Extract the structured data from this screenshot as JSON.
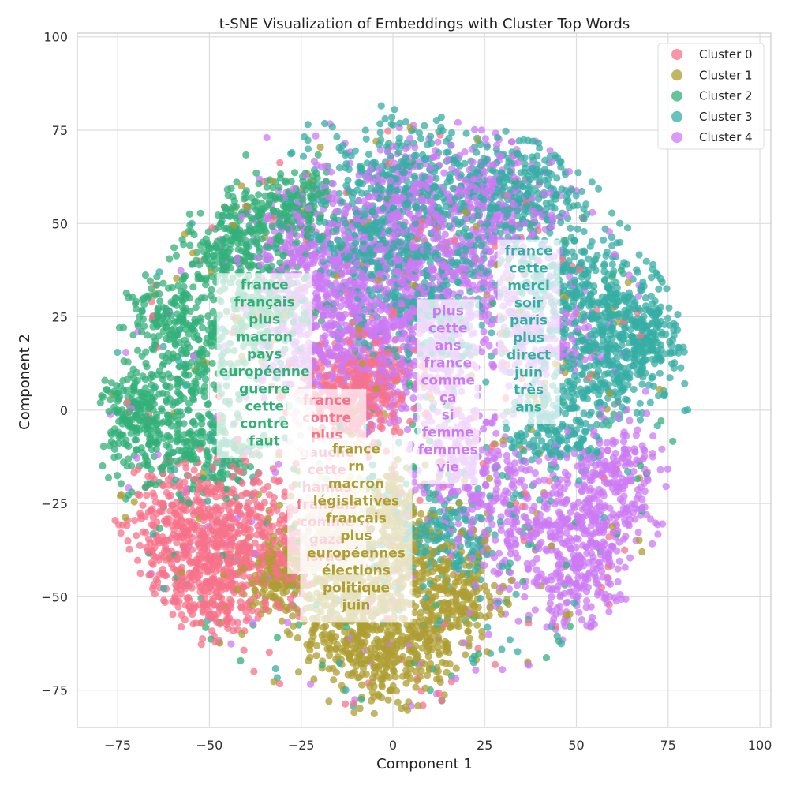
{
  "chart_data": {
    "type": "scatter",
    "title": "t-SNE Visualization of Embeddings with Cluster Top Words",
    "xlabel": "Component 1",
    "ylabel": "Component 2",
    "xlim": [
      -86,
      103
    ],
    "ylim": [
      -85,
      101
    ],
    "xticks": [
      -75,
      -50,
      -25,
      0,
      25,
      50,
      75,
      100
    ],
    "yticks": [
      -75,
      -50,
      -25,
      0,
      25,
      50,
      75,
      100
    ],
    "grid": true,
    "legend_position": "top-right",
    "series": [
      {
        "name": "Cluster 0",
        "color": "#f77189",
        "centers": [
          [
            -52,
            -40,
            8
          ],
          [
            -42,
            -30,
            7
          ],
          [
            -58,
            -28,
            6
          ],
          [
            -8,
            0,
            5
          ],
          [
            -5,
            12,
            5
          ],
          [
            -15,
            5,
            5
          ],
          [
            -48,
            -48,
            6
          ],
          [
            -30,
            -40,
            5
          ]
        ],
        "top_words": [
          "france",
          "contre",
          "plus",
          "gauche",
          "cette",
          "hamas",
          "français",
          "comme",
          "gaza",
          "israël"
        ],
        "label_anchor": [
          -18,
          4
        ]
      },
      {
        "name": "Cluster 1",
        "color": "#ae9d31",
        "centers": [
          [
            -12,
            -60,
            6
          ],
          [
            -8,
            -48,
            7
          ],
          [
            -20,
            -42,
            6
          ],
          [
            5,
            -40,
            6
          ],
          [
            -2,
            -68,
            5
          ],
          [
            18,
            -50,
            5
          ],
          [
            -32,
            -45,
            4
          ],
          [
            -15,
            -30,
            5
          ],
          [
            0,
            -25,
            4
          ],
          [
            10,
            -62,
            4
          ]
        ],
        "top_words": [
          "france",
          "rn",
          "macron",
          "législatives",
          "français",
          "plus",
          "européennes",
          "élections",
          "politique",
          "juin"
        ],
        "label_anchor": [
          -10,
          -9
        ]
      },
      {
        "name": "Cluster 2",
        "color": "#33b07a",
        "centers": [
          [
            -65,
            -8,
            6
          ],
          [
            -55,
            12,
            6
          ],
          [
            -38,
            50,
            6
          ],
          [
            -45,
            40,
            5
          ],
          [
            -60,
            25,
            5
          ],
          [
            -70,
            0,
            4
          ],
          [
            -35,
            25,
            5
          ],
          [
            -48,
            -12,
            5
          ],
          [
            -25,
            55,
            4
          ]
        ],
        "top_words": [
          "france",
          "français",
          "plus",
          "macron",
          "pays",
          "européenne",
          "guerre",
          "cette",
          "contre",
          "faut"
        ],
        "label_anchor": [
          -35,
          35
        ]
      },
      {
        "name": "Cluster 3",
        "color": "#36ada4",
        "centers": [
          [
            62,
            25,
            8
          ],
          [
            57,
            10,
            7
          ],
          [
            48,
            35,
            6
          ],
          [
            68,
            20,
            5
          ],
          [
            40,
            58,
            6
          ],
          [
            0,
            60,
            10
          ],
          [
            -5,
            45,
            8
          ],
          [
            25,
            58,
            7
          ],
          [
            45,
            -5,
            6
          ],
          [
            15,
            -35,
            6
          ],
          [
            10,
            30,
            8
          ]
        ],
        "top_words": [
          "france",
          "cette",
          "merci",
          "soir",
          "paris",
          "plus",
          "direct",
          "juin",
          "très",
          "ans"
        ],
        "label_anchor": [
          37,
          44
        ]
      },
      {
        "name": "Cluster 4",
        "color": "#cc79f4",
        "centers": [
          [
            -20,
            20,
            8
          ],
          [
            -5,
            40,
            10
          ],
          [
            15,
            35,
            9
          ],
          [
            30,
            55,
            8
          ],
          [
            35,
            -30,
            8
          ],
          [
            55,
            -30,
            6
          ],
          [
            50,
            -45,
            6
          ],
          [
            -25,
            42,
            7
          ],
          [
            10,
            10,
            8
          ],
          [
            -10,
            25,
            8
          ],
          [
            40,
            20,
            6
          ],
          [
            20,
            -15,
            6
          ],
          [
            60,
            -15,
            5
          ],
          [
            5,
            55,
            8
          ]
        ],
        "top_words": [
          "plus",
          "cette",
          "ans",
          "france",
          "comme",
          "ça",
          "si",
          "femme",
          "femmes",
          "vie"
        ],
        "label_anchor": [
          15,
          28
        ]
      }
    ]
  }
}
